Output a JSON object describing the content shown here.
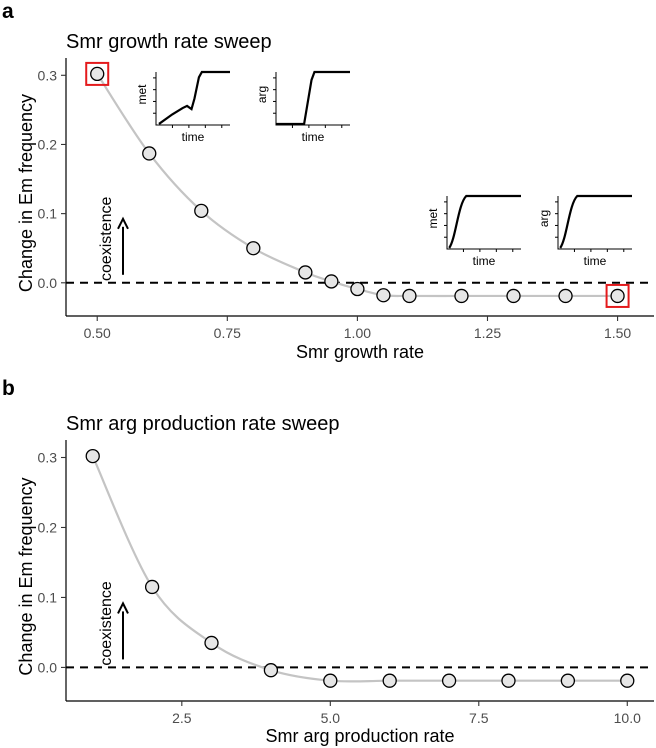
{
  "chart_data": [
    {
      "panel": "a",
      "type": "line",
      "title": "Smr growth rate sweep",
      "xlabel": "Smr growth rate",
      "ylabel": "Change in Em frequency",
      "xlim": [
        0.44,
        1.57
      ],
      "ylim": [
        -0.048,
        0.325
      ],
      "xticks": [
        0.5,
        0.75,
        1.0,
        1.25,
        1.5
      ],
      "xtick_labels": [
        "0.50",
        "0.75",
        "1.00",
        "1.25",
        "1.50"
      ],
      "yticks": [
        0.0,
        0.1,
        0.2,
        0.3
      ],
      "ytick_labels": [
        "0.0",
        "0.1",
        "0.2",
        "0.3"
      ],
      "x": [
        0.5,
        0.6,
        0.7,
        0.8,
        0.9,
        0.95,
        1.0,
        1.05,
        1.1,
        1.2,
        1.3,
        1.4,
        1.5
      ],
      "y": [
        0.302,
        0.187,
        0.104,
        0.05,
        0.015,
        0.002,
        -0.009,
        -0.018,
        -0.019,
        -0.019,
        -0.019,
        -0.019,
        -0.019
      ],
      "highlighted_points": [
        0,
        12
      ],
      "reference_line_y": 0,
      "annotation": "coexistence",
      "insets": [
        {
          "ylabel": "met",
          "xlabel": "time",
          "shape": "bump-then-rise"
        },
        {
          "ylabel": "arg",
          "xlabel": "time",
          "shape": "late-step"
        },
        {
          "ylabel": "met",
          "xlabel": "time",
          "shape": "early-saturating"
        },
        {
          "ylabel": "arg",
          "xlabel": "time",
          "shape": "early-saturating"
        }
      ]
    },
    {
      "panel": "b",
      "type": "line",
      "title": "Smr arg production rate sweep",
      "xlabel": "Smr arg production rate",
      "ylabel": "Change in Em frequency",
      "xlim": [
        0.55,
        10.45
      ],
      "ylim": [
        -0.048,
        0.325
      ],
      "xticks": [
        2.5,
        5.0,
        7.5,
        10.0
      ],
      "xtick_labels": [
        "2.5",
        "5.0",
        "7.5",
        "10.0"
      ],
      "yticks": [
        0.0,
        0.1,
        0.2,
        0.3
      ],
      "ytick_labels": [
        "0.0",
        "0.1",
        "0.2",
        "0.3"
      ],
      "x": [
        1,
        2,
        3,
        4,
        5,
        6,
        7,
        8,
        9,
        10
      ],
      "y": [
        0.302,
        0.115,
        0.035,
        -0.004,
        -0.019,
        -0.019,
        -0.019,
        -0.019,
        -0.019,
        -0.019
      ],
      "highlighted_points": [],
      "reference_line_y": 0,
      "annotation": "coexistence",
      "insets": []
    }
  ]
}
